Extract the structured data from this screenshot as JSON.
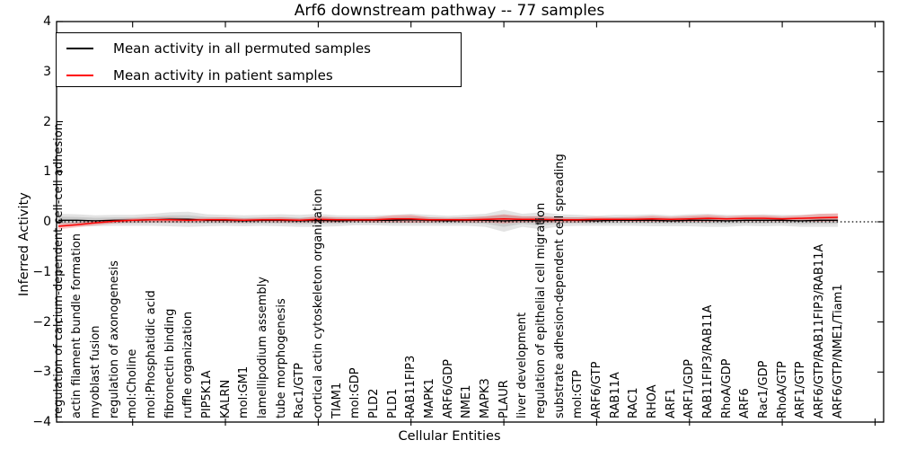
{
  "chart_data": {
    "type": "line",
    "title": "Arf6 downstream pathway -- 77 samples",
    "xlabel": "Cellular Entities",
    "ylabel": "Inferred Activity",
    "ylim": [
      -4,
      4
    ],
    "yticks": [
      4,
      3,
      2,
      1,
      0,
      -1,
      -2,
      -3,
      -4
    ],
    "x_major_tick_step": 5,
    "grid": false,
    "legend_position": "upper left",
    "zero_reference_line": {
      "value": 0,
      "style": "dotted",
      "color": "#000000"
    },
    "categories": [
      "regulation of calcium-dependent cell-cell adhesion",
      "actin filament bundle formation",
      "myoblast fusion",
      "regulation of axonogenesis",
      "mol:Choline",
      "mol:Phosphatidic acid",
      "fibronectin binding",
      "ruffle organization",
      "PIP5K1A",
      "KALRN",
      "mol:GM1",
      "lamellipodium assembly",
      "tube morphogenesis",
      "Rac1/GTP",
      "cortical actin cytoskeleton organization",
      "TIAM1",
      "mol:GDP",
      "PLD2",
      "PLD1",
      "RAB11FIP3",
      "MAPK1",
      "ARF6/GDP",
      "NME1",
      "MAPK3",
      "PLAUR",
      "liver development",
      "regulation of epithelial cell migration",
      "substrate adhesion-dependent cell spreading",
      "mol:GTP",
      "ARF6/GTP",
      "RAB11A",
      "RAC1",
      "RHOA",
      "ARF1",
      "ARF1/GDP",
      "RAB11FIP3/RAB11A",
      "RhoA/GDP",
      "ARF6",
      "Rac1/GDP",
      "RhoA/GTP",
      "ARF1/GTP",
      "ARF6/GTP/RAB11FIP3/RAB11A",
      "ARF6/GTP/NME1/Tiam1"
    ],
    "series": [
      {
        "name": "Mean activity in all permuted samples",
        "color": "#000000",
        "style": "solid",
        "values": [
          0.03,
          0.03,
          0.02,
          0.03,
          0.03,
          0.04,
          0.05,
          0.05,
          0.03,
          0.03,
          0.02,
          0.03,
          0.03,
          0.02,
          0.03,
          0.02,
          0.03,
          0.03,
          0.03,
          0.04,
          0.03,
          0.02,
          0.03,
          0.03,
          0.02,
          0.03,
          0.02,
          0.03,
          0.03,
          0.02,
          0.03,
          0.03,
          0.03,
          0.02,
          0.03,
          0.03,
          0.02,
          0.03,
          0.03,
          0.03,
          0.02,
          0.03,
          0.03
        ],
        "band_half_widths": [
          0.13,
          0.12,
          0.11,
          0.11,
          0.11,
          0.12,
          0.14,
          0.15,
          0.12,
          0.11,
          0.11,
          0.11,
          0.12,
          0.12,
          0.13,
          0.11,
          0.1,
          0.1,
          0.11,
          0.12,
          0.11,
          0.1,
          0.11,
          0.13,
          0.22,
          0.13,
          0.17,
          0.12,
          0.11,
          0.1,
          0.11,
          0.11,
          0.12,
          0.11,
          0.12,
          0.13,
          0.12,
          0.11,
          0.12,
          0.11,
          0.12,
          0.13,
          0.13
        ],
        "band_color": "#000000",
        "band_opacity": 0.11
      },
      {
        "name": "Mean activity in patient samples",
        "color": "#ff0000",
        "style": "solid",
        "values": [
          -0.09,
          -0.06,
          -0.02,
          0.01,
          0.03,
          0.04,
          0.04,
          0.03,
          0.04,
          0.04,
          0.03,
          0.04,
          0.04,
          0.03,
          0.05,
          0.04,
          0.04,
          0.04,
          0.06,
          0.06,
          0.04,
          0.04,
          0.04,
          0.05,
          0.06,
          0.05,
          0.05,
          0.04,
          0.04,
          0.05,
          0.05,
          0.05,
          0.06,
          0.05,
          0.06,
          0.07,
          0.06,
          0.07,
          0.07,
          0.06,
          0.07,
          0.08,
          0.09
        ],
        "band_half_widths": [
          0.06,
          0.05,
          0.05,
          0.04,
          0.04,
          0.05,
          0.05,
          0.04,
          0.04,
          0.05,
          0.04,
          0.04,
          0.05,
          0.04,
          0.06,
          0.05,
          0.04,
          0.05,
          0.07,
          0.08,
          0.05,
          0.04,
          0.05,
          0.06,
          0.09,
          0.06,
          0.06,
          0.05,
          0.05,
          0.05,
          0.04,
          0.05,
          0.06,
          0.05,
          0.06,
          0.07,
          0.05,
          0.06,
          0.06,
          0.05,
          0.06,
          0.08,
          0.08
        ],
        "band_color": "#ff0000",
        "band_opacity": 0.22
      }
    ]
  }
}
